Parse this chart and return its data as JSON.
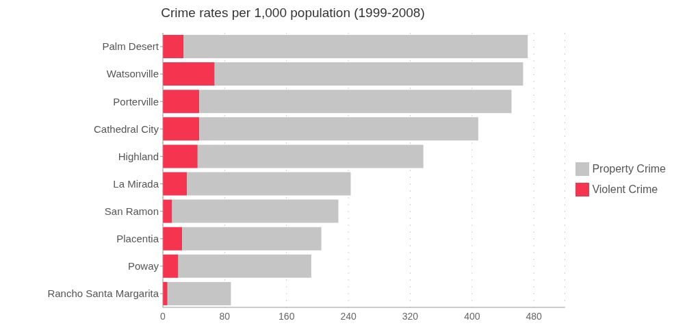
{
  "chart_data": {
    "type": "bar",
    "orientation": "horizontal",
    "stacked": true,
    "title": "Crime rates per 1,000 population  (1999-2008)",
    "categories": [
      "Palm Desert",
      "Watsonville",
      "Porterville",
      "Cathedral City",
      "Highland",
      "La Mirada",
      "San Ramon",
      "Placentia",
      "Poway",
      "Rancho Santa Margarita"
    ],
    "series": [
      {
        "name": "Violent Crime",
        "color": "#f5344f",
        "values": [
          27,
          67,
          47,
          47,
          45,
          31,
          12,
          25,
          20,
          6
        ]
      },
      {
        "name": "Property Crime",
        "color": "#c4c5c4",
        "values": [
          445,
          399,
          404,
          361,
          292,
          212,
          215,
          180,
          172,
          82
        ]
      }
    ],
    "xlim": [
      0,
      520
    ],
    "xticks": [
      0,
      80,
      160,
      240,
      320,
      400,
      480
    ],
    "grid": "x",
    "legend": "right"
  }
}
